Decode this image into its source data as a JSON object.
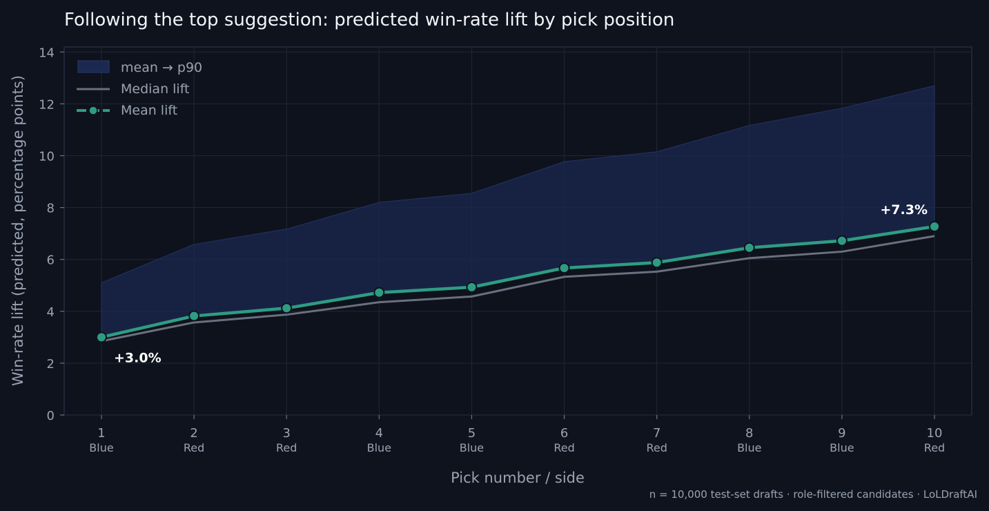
{
  "chart_data": {
    "type": "line",
    "title": "Following the top suggestion: predicted win-rate lift by pick position",
    "xlabel": "Pick number  /  side",
    "ylabel": "Win-rate lift (predicted, percentage points)",
    "x": [
      1,
      2,
      3,
      4,
      5,
      6,
      7,
      8,
      9,
      10
    ],
    "x_sublabels": [
      "Blue",
      "Red",
      "Red",
      "Blue",
      "Blue",
      "Red",
      "Red",
      "Blue",
      "Blue",
      "Red"
    ],
    "ylim": [
      0,
      14
    ],
    "yticks": [
      0,
      2,
      4,
      6,
      8,
      10,
      12,
      14
    ],
    "grid": true,
    "legend_position": "top-left",
    "series": [
      {
        "name": "mean → p90",
        "kind": "band",
        "lower": [
          3.0,
          3.82,
          4.12,
          4.72,
          4.93,
          5.67,
          5.88,
          6.45,
          6.72,
          7.27
        ],
        "upper": [
          5.1,
          6.58,
          7.17,
          8.2,
          8.55,
          9.77,
          10.15,
          11.17,
          11.83,
          12.7
        ],
        "color": "#1b2850"
      },
      {
        "name": "Median lift",
        "kind": "line",
        "values": [
          2.85,
          3.57,
          3.87,
          4.35,
          4.57,
          5.33,
          5.53,
          6.05,
          6.3,
          6.9
        ],
        "color": "#6b7080"
      },
      {
        "name": "Mean lift",
        "kind": "line-markers",
        "values": [
          3.0,
          3.82,
          4.12,
          4.72,
          4.93,
          5.67,
          5.88,
          6.45,
          6.72,
          7.27
        ],
        "color": "#2e9c83"
      }
    ],
    "annotations": [
      {
        "text": "+3.0%",
        "x": 1,
        "y": 3.0
      },
      {
        "text": "+7.3%",
        "x": 10,
        "y": 7.27
      }
    ],
    "footnote": "n = 10,000 test-set drafts · role-filtered candidates · LoLDraftAI"
  }
}
